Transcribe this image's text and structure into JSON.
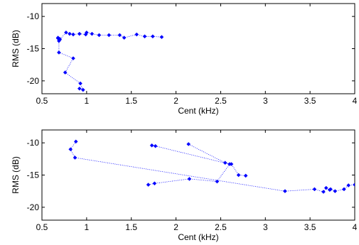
{
  "chart_data": [
    {
      "type": "scatter",
      "xlabel": "Cent (kHz)",
      "ylabel": "RMS (dB)",
      "xlim": [
        0.5,
        4
      ],
      "ylim": [
        -22,
        -8
      ],
      "xticks": [
        0.5,
        1,
        1.5,
        2,
        2.5,
        3,
        3.5,
        4
      ],
      "xtick_labels": [
        "0.5",
        "1",
        "1.5",
        "2",
        "2.5",
        "3",
        "3.5",
        "4"
      ],
      "yticks": [
        -10,
        -15,
        -20
      ],
      "ytick_labels": [
        "-10",
        "-15",
        "-20"
      ],
      "grid": false,
      "line_style": "dotted",
      "color": "#0000ff",
      "series": [
        {
          "x": [
            0.92,
            0.96,
            0.93,
            0.76,
            0.85,
            0.69,
            0.69,
            0.68,
            0.7,
            0.68,
            0.7,
            0.77,
            0.81,
            0.85,
            0.92,
            0.99,
            1.0,
            1.06,
            1.14,
            1.25,
            1.37,
            1.42,
            1.56,
            1.65,
            1.74,
            1.84
          ],
          "y": [
            -21.2,
            -21.4,
            -20.4,
            -18.7,
            -16.5,
            -15.6,
            -13.8,
            -13.4,
            -13.5,
            -13.3,
            -13.6,
            -12.5,
            -12.7,
            -12.8,
            -12.7,
            -12.8,
            -12.5,
            -12.7,
            -12.9,
            -12.9,
            -12.9,
            -13.3,
            -12.8,
            -13.1,
            -13.1,
            -13.2
          ]
        }
      ]
    },
    {
      "type": "scatter",
      "xlabel": "Cent (kHz)",
      "ylabel": "RMS (dB)",
      "xlim": [
        0.5,
        4
      ],
      "ylim": [
        -22,
        -8
      ],
      "xticks": [
        0.5,
        1,
        1.5,
        2,
        2.5,
        3,
        3.5,
        4
      ],
      "xtick_labels": [
        "0.5",
        "1",
        "1.5",
        "2",
        "2.5",
        "3",
        "3.5",
        "4"
      ],
      "yticks": [
        -10,
        -15,
        -20
      ],
      "ytick_labels": [
        "-10",
        "-15",
        "-20"
      ],
      "grid": false,
      "line_style": "dotted",
      "color": "#0000ff",
      "series": [
        {
          "x": [
            2.14,
            2.55,
            2.62,
            2.7,
            2.78
          ],
          "y": [
            -10.2,
            -13.1,
            -13.3,
            -15.0,
            -15.1
          ]
        },
        {
          "x": [
            1.73,
            1.77,
            2.6,
            2.46,
            2.15,
            1.76,
            1.69
          ],
          "y": [
            -10.4,
            -10.5,
            -13.3,
            -16.0,
            -15.6,
            -16.3,
            -16.5
          ]
        },
        {
          "x": [
            0.88,
            0.82,
            0.87,
            3.22,
            3.55,
            3.65,
            3.68,
            3.72,
            3.73,
            3.78,
            3.88,
            3.93,
            4.0
          ],
          "y": [
            -9.8,
            -11.0,
            -12.3,
            -17.5,
            -17.2,
            -17.6,
            -17.0,
            -17.3,
            -17.2,
            -17.5,
            -17.2,
            -16.6,
            -16.5
          ]
        }
      ]
    }
  ]
}
